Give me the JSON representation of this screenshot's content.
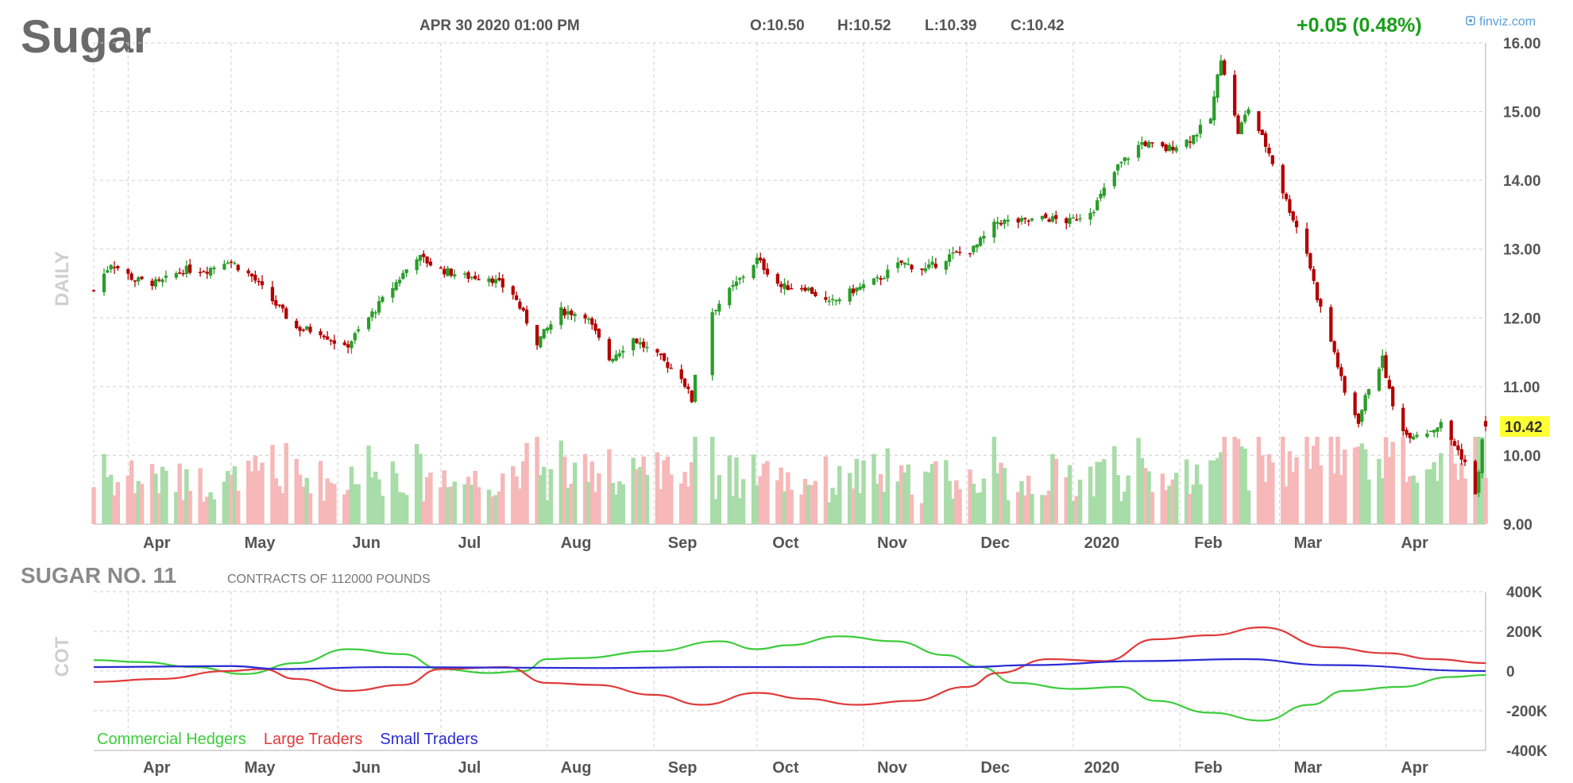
{
  "header": {
    "symbol": "Sugar",
    "timestamp": "APR 30 2020 01:00 PM",
    "open": "O:10.50",
    "high": "H:10.52",
    "low": "L:10.39",
    "close": "C:10.42",
    "change": "+0.05 (0.48%)",
    "brand": "finviz.com",
    "brand_icon": "finviz-logo-icon"
  },
  "colors": {
    "up": "#2a9d2a",
    "down": "#b30000",
    "vol_up": "#a8dca8",
    "vol_down": "#f6b8b8",
    "grid": "#cfcfcf",
    "last_price_bg": "#ffff33",
    "commercial": "#3ccc3c",
    "large": "#e03a3a",
    "small": "#2b2bd6",
    "change_positive": "#1a9e1a"
  },
  "chart_data": [
    {
      "type": "candlestick",
      "title": "Sugar",
      "ylabel": "DAILY",
      "ylim": [
        9.0,
        16.0
      ],
      "yticks": [
        "16.00",
        "15.00",
        "14.00",
        "13.00",
        "12.00",
        "11.00",
        "10.00",
        "9.00"
      ],
      "last_price": "10.42",
      "xlabels": [
        "Apr",
        "May",
        "Jun",
        "Jul",
        "Aug",
        "Sep",
        "Oct",
        "Nov",
        "Dec",
        "2020",
        "Feb",
        "Mar",
        "Apr"
      ],
      "x_range": [
        "2019-03-22",
        "2020-04-30"
      ],
      "gaps": [
        [
          "2019-09-13",
          "2019-09-18"
        ]
      ],
      "price_path": [
        [
          "2019-03-22",
          12.4
        ],
        [
          "2019-03-27",
          12.8
        ],
        [
          "2019-04-03",
          12.55
        ],
        [
          "2019-04-10",
          12.5
        ],
        [
          "2019-04-17",
          12.7
        ],
        [
          "2019-04-24",
          12.7
        ],
        [
          "2019-04-30",
          12.85
        ],
        [
          "2019-05-07",
          12.6
        ],
        [
          "2019-05-13",
          12.25
        ],
        [
          "2019-05-20",
          11.85
        ],
        [
          "2019-05-27",
          11.8
        ],
        [
          "2019-06-03",
          11.55
        ],
        [
          "2019-06-10",
          12.0
        ],
        [
          "2019-06-17",
          12.45
        ],
        [
          "2019-06-24",
          12.9
        ],
        [
          "2019-07-01",
          12.7
        ],
        [
          "2019-07-08",
          12.6
        ],
        [
          "2019-07-15",
          12.6
        ],
        [
          "2019-07-22",
          12.35
        ],
        [
          "2019-07-29",
          11.65
        ],
        [
          "2019-08-05",
          12.1
        ],
        [
          "2019-08-12",
          12.05
        ],
        [
          "2019-08-19",
          11.4
        ],
        [
          "2019-08-26",
          11.7
        ],
        [
          "2019-09-03",
          11.4
        ],
        [
          "2019-09-09",
          11.15
        ],
        [
          "2019-09-12",
          10.8
        ],
        [
          "2019-09-13",
          11.2
        ],
        [
          "2019-09-18",
          12.1
        ],
        [
          "2019-09-25",
          12.5
        ],
        [
          "2019-10-01",
          12.85
        ],
        [
          "2019-10-08",
          12.45
        ],
        [
          "2019-10-15",
          12.45
        ],
        [
          "2019-10-22",
          12.2
        ],
        [
          "2019-10-29",
          12.4
        ],
        [
          "2019-11-05",
          12.55
        ],
        [
          "2019-11-12",
          12.8
        ],
        [
          "2019-11-19",
          12.7
        ],
        [
          "2019-11-26",
          12.9
        ],
        [
          "2019-12-03",
          13.0
        ],
        [
          "2019-12-10",
          13.4
        ],
        [
          "2019-12-17",
          13.4
        ],
        [
          "2019-12-24",
          13.45
        ],
        [
          "2019-12-31",
          13.4
        ],
        [
          "2020-01-07",
          13.6
        ],
        [
          "2020-01-14",
          14.2
        ],
        [
          "2020-01-21",
          14.55
        ],
        [
          "2020-01-28",
          14.45
        ],
        [
          "2020-02-04",
          14.6
        ],
        [
          "2020-02-10",
          14.9
        ],
        [
          "2020-02-13",
          15.8
        ],
        [
          "2020-02-18",
          14.7
        ],
        [
          "2020-02-21",
          15.05
        ],
        [
          "2020-02-27",
          14.4
        ],
        [
          "2020-03-03",
          13.7
        ],
        [
          "2020-03-09",
          12.95
        ],
        [
          "2020-03-12",
          12.3
        ],
        [
          "2020-03-17",
          11.5
        ],
        [
          "2020-03-20",
          10.9
        ],
        [
          "2020-03-24",
          10.5
        ],
        [
          "2020-03-27",
          11.0
        ],
        [
          "2020-03-31",
          11.4
        ],
        [
          "2020-04-03",
          10.7
        ],
        [
          "2020-04-07",
          10.3
        ],
        [
          "2020-04-13",
          10.35
        ],
        [
          "2020-04-17",
          10.45
        ],
        [
          "2020-04-21",
          10.15
        ],
        [
          "2020-04-24",
          9.9
        ],
        [
          "2020-04-27",
          9.4
        ],
        [
          "2020-04-29",
          10.2
        ],
        [
          "2020-04-30",
          10.42
        ]
      ]
    },
    {
      "type": "line",
      "title": "SUGAR NO. 11",
      "subtitle": "CONTRACTS OF 112000 POUNDS",
      "ylabel": "COT",
      "ylim": [
        -400000,
        400000
      ],
      "yticks": [
        "400K",
        "200K",
        "0",
        "-200K",
        "-400K"
      ],
      "xlabels": [
        "Apr",
        "May",
        "Jun",
        "Jul",
        "Aug",
        "Sep",
        "Oct",
        "Nov",
        "Dec",
        "2020",
        "Feb",
        "Mar",
        "Apr"
      ],
      "legend_position": "bottom-left",
      "series": [
        {
          "name": "Commercial Hedgers",
          "points": [
            [
              "2019-03-22",
              55000
            ],
            [
              "2019-04-05",
              45000
            ],
            [
              "2019-04-20",
              20000
            ],
            [
              "2019-05-05",
              -15000
            ],
            [
              "2019-05-20",
              40000
            ],
            [
              "2019-06-04",
              110000
            ],
            [
              "2019-06-20",
              85000
            ],
            [
              "2019-07-01",
              10000
            ],
            [
              "2019-07-15",
              -10000
            ],
            [
              "2019-07-25",
              0
            ],
            [
              "2019-08-01",
              60000
            ],
            [
              "2019-08-10",
              65000
            ],
            [
              "2019-09-01",
              100000
            ],
            [
              "2019-09-20",
              150000
            ],
            [
              "2019-10-01",
              110000
            ],
            [
              "2019-10-10",
              130000
            ],
            [
              "2019-10-25",
              175000
            ],
            [
              "2019-11-10",
              150000
            ],
            [
              "2019-11-25",
              80000
            ],
            [
              "2019-12-05",
              20000
            ],
            [
              "2019-12-15",
              -60000
            ],
            [
              "2020-01-01",
              -90000
            ],
            [
              "2020-01-15",
              -80000
            ],
            [
              "2020-01-25",
              -150000
            ],
            [
              "2020-02-10",
              -210000
            ],
            [
              "2020-02-25",
              -250000
            ],
            [
              "2020-03-10",
              -170000
            ],
            [
              "2020-03-20",
              -100000
            ],
            [
              "2020-04-05",
              -80000
            ],
            [
              "2020-04-20",
              -30000
            ],
            [
              "2020-04-30",
              -20000
            ]
          ]
        },
        {
          "name": "Large Traders",
          "points": [
            [
              "2019-03-22",
              -55000
            ],
            [
              "2019-04-10",
              -40000
            ],
            [
              "2019-04-30",
              0
            ],
            [
              "2019-05-10",
              10000
            ],
            [
              "2019-05-20",
              -40000
            ],
            [
              "2019-06-04",
              -100000
            ],
            [
              "2019-06-20",
              -70000
            ],
            [
              "2019-07-01",
              10000
            ],
            [
              "2019-07-20",
              20000
            ],
            [
              "2019-08-01",
              -60000
            ],
            [
              "2019-08-15",
              -70000
            ],
            [
              "2019-09-01",
              -120000
            ],
            [
              "2019-09-15",
              -170000
            ],
            [
              "2019-10-01",
              -110000
            ],
            [
              "2019-10-15",
              -140000
            ],
            [
              "2019-10-30",
              -170000
            ],
            [
              "2019-11-15",
              -150000
            ],
            [
              "2019-12-01",
              -80000
            ],
            [
              "2019-12-10",
              -10000
            ],
            [
              "2019-12-25",
              60000
            ],
            [
              "2020-01-10",
              50000
            ],
            [
              "2020-01-25",
              160000
            ],
            [
              "2020-02-10",
              180000
            ],
            [
              "2020-02-25",
              220000
            ],
            [
              "2020-03-15",
              120000
            ],
            [
              "2020-04-01",
              90000
            ],
            [
              "2020-04-15",
              60000
            ],
            [
              "2020-04-30",
              40000
            ]
          ]
        },
        {
          "name": "Small Traders",
          "points": [
            [
              "2019-03-22",
              20000
            ],
            [
              "2019-05-01",
              25000
            ],
            [
              "2019-05-15",
              10000
            ],
            [
              "2019-06-15",
              20000
            ],
            [
              "2019-08-15",
              15000
            ],
            [
              "2019-09-20",
              20000
            ],
            [
              "2019-10-15",
              20000
            ],
            [
              "2019-12-01",
              20000
            ],
            [
              "2019-12-20",
              30000
            ],
            [
              "2020-01-20",
              50000
            ],
            [
              "2020-02-20",
              60000
            ],
            [
              "2020-03-15",
              30000
            ],
            [
              "2020-04-30",
              0
            ]
          ]
        }
      ]
    }
  ]
}
